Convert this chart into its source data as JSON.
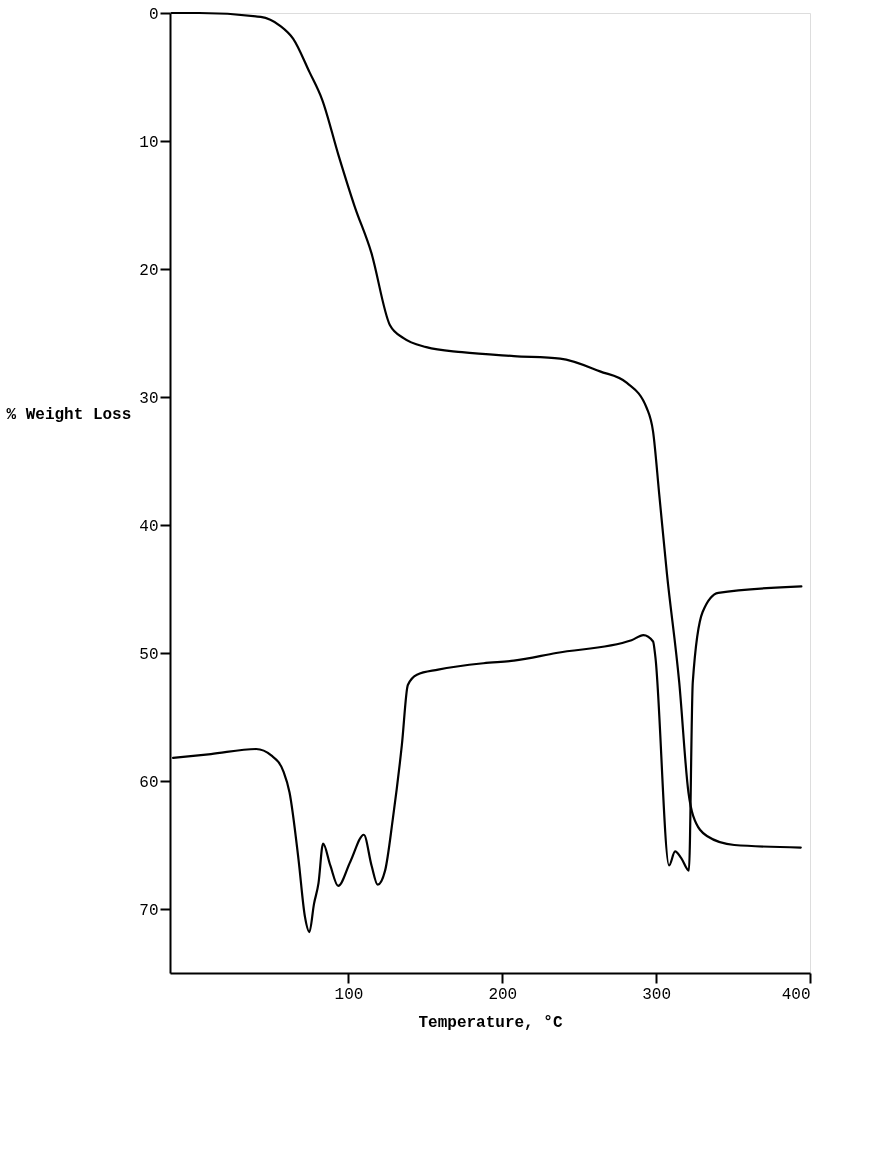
{
  "chart_data": {
    "type": "line",
    "xlabel": "Temperature,  °C",
    "ylabel": "% Weight Loss",
    "xlim": [
      -16,
      400
    ],
    "xticks": [
      100,
      200,
      300,
      400
    ],
    "ylim": [
      75,
      0
    ],
    "yticks": [
      0,
      10,
      20,
      30,
      40,
      50,
      60,
      70
    ],
    "grid": false,
    "marker": "none",
    "line_style": "solid",
    "series": [
      {
        "color": "#000000",
        "x": [
          -15,
          3,
          43,
          55.6,
          64,
          74.6,
          83,
          93.5,
          104,
          114.8,
          127,
          135.8,
          150.6,
          173.8,
          207.5,
          237.6,
          263.5,
          281,
          294,
          298,
          302,
          307,
          315,
          321,
          324,
          333,
          350.8,
          394
        ],
        "values": [
          0,
          0,
          0.3,
          1.0,
          2.0,
          4.6,
          6.8,
          11.1,
          15.1,
          18.7,
          24.4,
          25.4,
          26.1,
          26.5,
          26.8,
          27,
          28,
          28.9,
          30.9,
          32.7,
          37.6,
          43.8,
          52.3,
          60.9,
          62.7,
          64.3,
          65,
          65.2
        ]
      },
      {
        "color": "#000000",
        "x": [
          -14,
          10.6,
          40,
          49.8,
          57.9,
          61.7,
          67.5,
          71.7,
          74.6,
          77.6,
          80.5,
          83.5,
          88.2,
          93.3,
          101.2,
          110,
          115,
          119,
          123.8,
          128.8,
          134.7,
          138.6,
          144.5,
          158.3,
          187.8,
          207.5,
          235,
          284,
          291.7,
          298,
          299.4,
          308.4,
          312.3,
          316.2,
          321.3,
          323.8,
          330.2,
          340.4,
          394.4
        ],
        "values": [
          58.2,
          57.9,
          57.5,
          58,
          59.3,
          60.9,
          66.1,
          70.6,
          71.8,
          69.6,
          68,
          64.9,
          66.6,
          68.2,
          66.3,
          64.2,
          66.6,
          68.1,
          67,
          63,
          57.2,
          52.5,
          51.7,
          51.3,
          50.8,
          50.6,
          50,
          49,
          48.6,
          49.1,
          50.2,
          66.6,
          65.5,
          66,
          67,
          52.3,
          46.8,
          45.3,
          44.8
        ]
      }
    ]
  }
}
